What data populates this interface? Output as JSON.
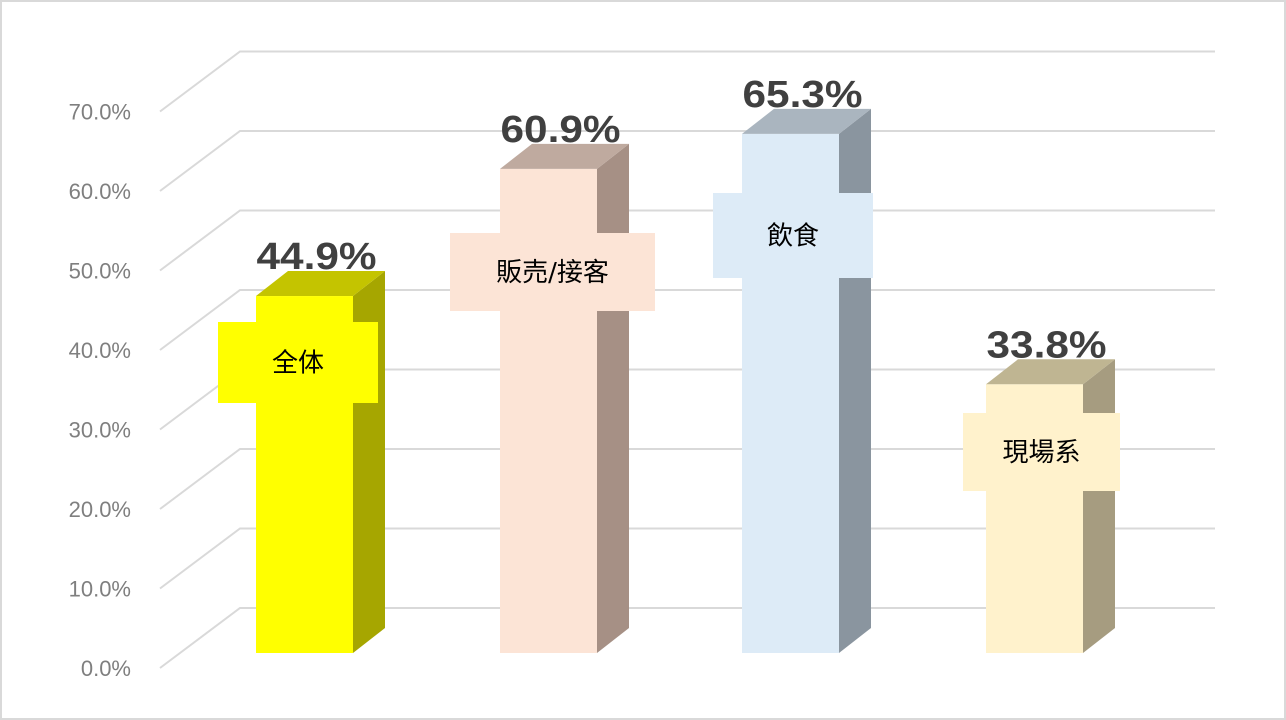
{
  "chart_data": {
    "type": "bar",
    "style": "3d-column",
    "categories": [
      "全体",
      "販売/接客",
      "飲食",
      "現場系"
    ],
    "values": [
      44.9,
      60.9,
      65.3,
      33.8
    ],
    "value_labels": [
      "44.9%",
      "60.9%",
      "65.3%",
      "33.8%"
    ],
    "ylim": [
      0,
      70
    ],
    "yticks": [
      "0.0%",
      "10.0%",
      "20.0%",
      "30.0%",
      "40.0%",
      "50.0%",
      "60.0%",
      "70.0%"
    ],
    "grid": true,
    "legend": "none",
    "colors": {
      "front": [
        "#ffff00",
        "#fce4d6",
        "#ddebf7",
        "#fff2cc"
      ],
      "side": [
        "#a6a600",
        "#a69085",
        "#8a959f",
        "#a69c80"
      ],
      "top": [
        "#c4c400",
        "#bfaa9f",
        "#aab5bf",
        "#bfb592"
      ]
    }
  }
}
